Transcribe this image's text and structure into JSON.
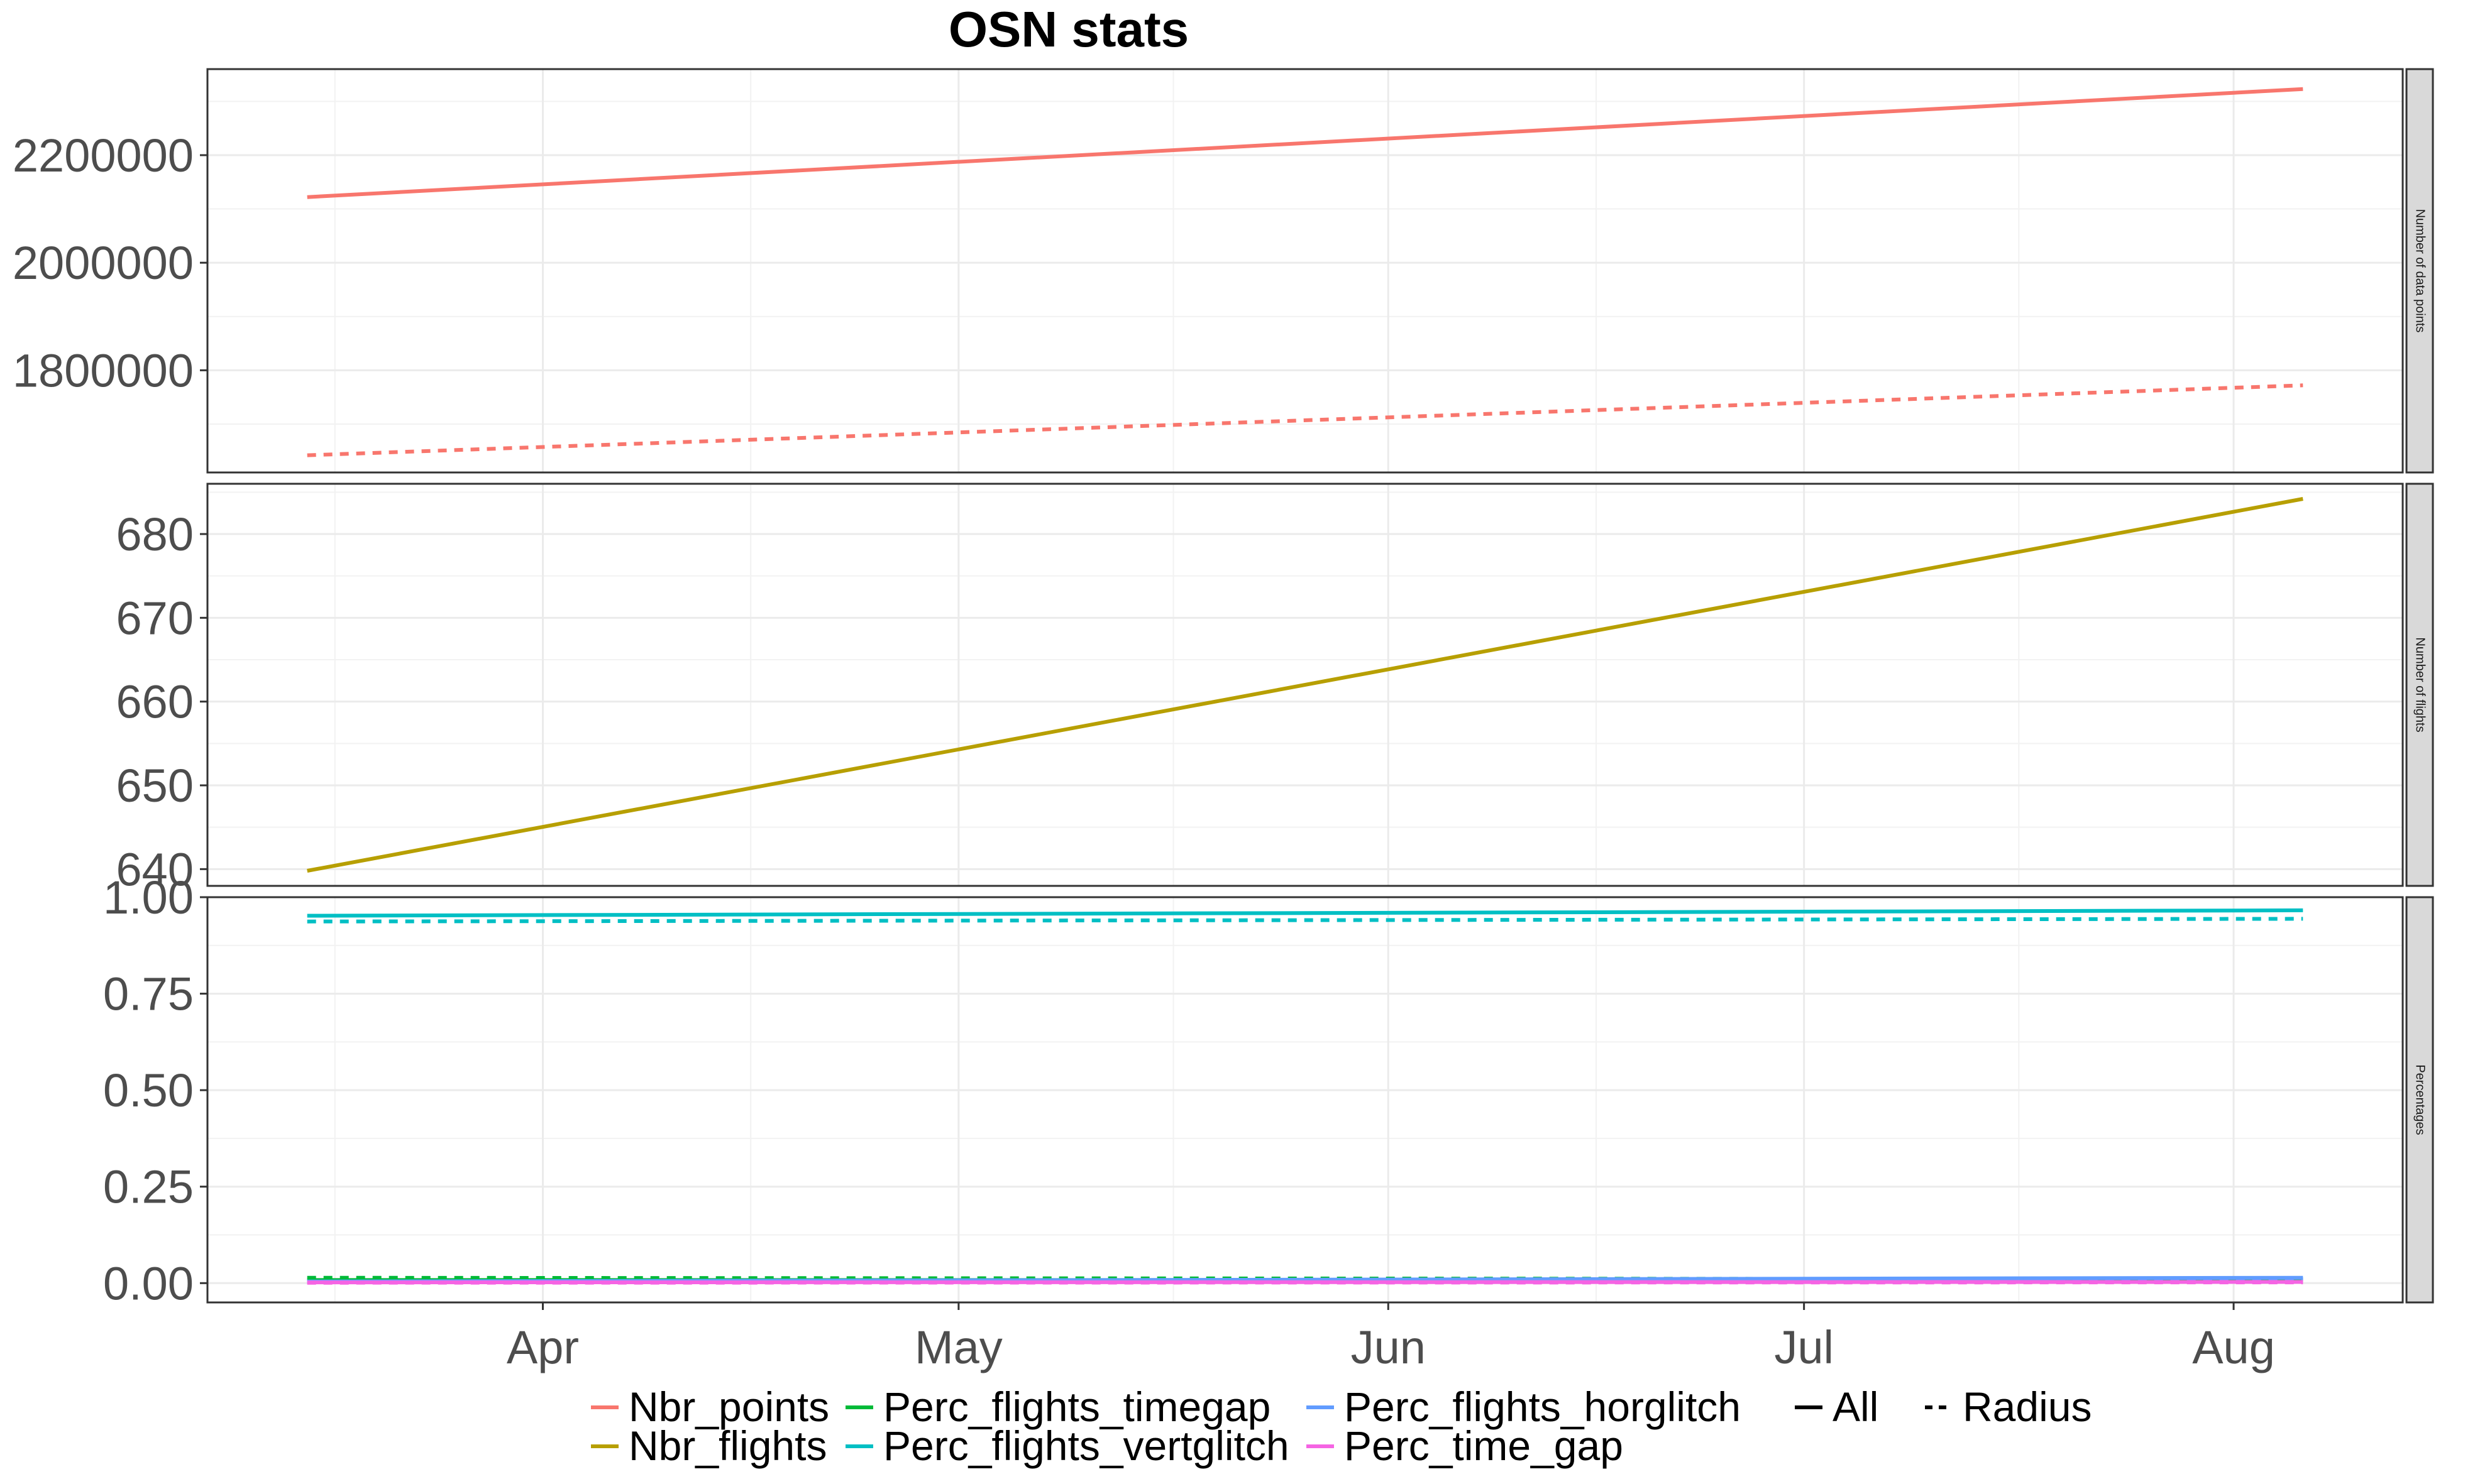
{
  "chart_data": {
    "type": "line",
    "title": "OSN stats",
    "xlabel": "",
    "ylabel": "",
    "x": [
      "2024-03-15",
      "2024-08-06"
    ],
    "x_ticks": [
      "Apr",
      "May",
      "Jun",
      "Jul",
      "Aug"
    ],
    "x_tick_dates": [
      "2024-04-01",
      "2024-05-01",
      "2024-06-01",
      "2024-07-01",
      "2024-08-01"
    ],
    "grid": true,
    "legend_position": "bottom",
    "colors": {
      "Nbr_points": "#F8766D",
      "Nbr_flights": "#B79F00",
      "Perc_flights_timegap": "#00BA38",
      "Perc_flights_vertglitch": "#00BFC4",
      "Perc_flights_horglitch": "#619CFF",
      "Perc_time_gap": "#F564E3"
    },
    "panels": [
      {
        "strip_label": "Number of data points",
        "y_ticks": [
          "1800000",
          "2000000",
          "2200000"
        ],
        "y_tick_values": [
          1800000,
          2000000,
          2200000
        ],
        "ylim": [
          1610000,
          2360000
        ],
        "series": [
          {
            "name": "Nbr_points",
            "linetype": "All",
            "values": [
              2122000,
              2323000
            ]
          },
          {
            "name": "Nbr_points",
            "linetype": "Radius",
            "values": [
              1642000,
              1772000
            ]
          }
        ]
      },
      {
        "strip_label": "Number of flights",
        "y_ticks": [
          "640",
          "650",
          "660",
          "670",
          "680"
        ],
        "y_tick_values": [
          640,
          650,
          660,
          670,
          680
        ],
        "ylim": [
          638,
          686
        ],
        "series": [
          {
            "name": "Nbr_flights",
            "linetype": "All",
            "values": [
              639.8,
              684.2
            ]
          }
        ]
      },
      {
        "strip_label": "Percentages",
        "y_ticks": [
          "0.00",
          "0.25",
          "0.50",
          "0.75",
          "1.00"
        ],
        "y_tick_values": [
          0,
          0.25,
          0.5,
          0.75,
          1.0
        ],
        "ylim": [
          -0.05,
          1.0
        ],
        "series": [
          {
            "name": "Perc_flights_vertglitch",
            "linetype": "All",
            "values": [
              0.952,
              0.966
            ]
          },
          {
            "name": "Perc_flights_vertglitch",
            "linetype": "Radius",
            "values": [
              0.937,
              0.944
            ]
          },
          {
            "name": "Perc_flights_timegap",
            "linetype": "All",
            "values": [
              0.008,
              0.008
            ]
          },
          {
            "name": "Perc_flights_timegap",
            "linetype": "Radius",
            "values": [
              0.014,
              0.01
            ]
          },
          {
            "name": "Perc_flights_horglitch",
            "linetype": "All",
            "values": [
              0.004,
              0.014
            ]
          },
          {
            "name": "Perc_flights_horglitch",
            "linetype": "Radius",
            "values": [
              0.003,
              0.01
            ]
          },
          {
            "name": "Perc_time_gap",
            "linetype": "All",
            "values": [
              0.002,
              0.003
            ]
          },
          {
            "name": "Perc_time_gap",
            "linetype": "Radius",
            "values": [
              0.001,
              0.002
            ]
          }
        ]
      }
    ],
    "legend": {
      "colour_entries": [
        "Nbr_points",
        "Nbr_flights",
        "Perc_flights_timegap",
        "Perc_flights_vertglitch",
        "Perc_flights_horglitch",
        "Perc_time_gap"
      ],
      "linetype_entries": [
        {
          "label": "All",
          "dash": "solid"
        },
        {
          "label": "Radius",
          "dash": "dashed"
        }
      ]
    }
  }
}
